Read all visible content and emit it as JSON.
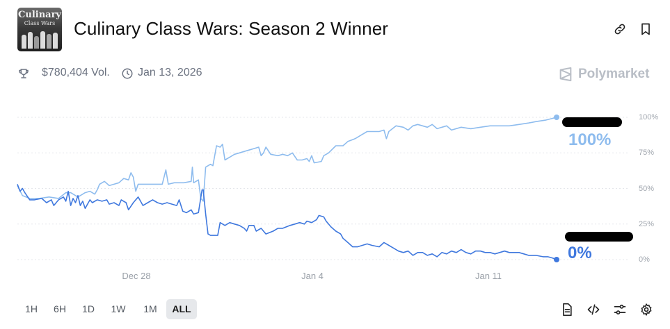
{
  "market": {
    "title": "Culinary Class Wars: Season 2 Winner",
    "volume": "$780,404 Vol.",
    "end_date": "Jan 13, 2026",
    "brand": "Polymarket",
    "thumbnail_text": [
      "Culinary",
      "Class Wars"
    ]
  },
  "timeframes": [
    "1H",
    "6H",
    "1D",
    "1W",
    "1M",
    "ALL"
  ],
  "active_timeframe": "ALL",
  "icons": [
    "trophy-icon",
    "clock-icon",
    "link-icon",
    "bookmark-icon",
    "polymarket-logo-icon",
    "document-icon",
    "code-icon",
    "sliders-icon",
    "gear-icon"
  ],
  "colors": {
    "series_light": "#8ebcee",
    "series_dark": "#3f78de",
    "grid": "#e5e7eb",
    "redaction": "#000000"
  },
  "chart_data": {
    "type": "line",
    "x_unit": "day offset from Dec 28",
    "y_axis": {
      "ticks": [
        "100%",
        "75%",
        "50%",
        "25%",
        "0%"
      ],
      "ylim": [
        0,
        100
      ],
      "position": "right"
    },
    "x_axis": {
      "ticks": [
        {
          "label": "Dec 28",
          "x": 0
        },
        {
          "label": "Jan 4",
          "x": 7
        },
        {
          "label": "Jan 11",
          "x": 14
        }
      ],
      "xlim": [
        -5.01,
        17.36
      ]
    },
    "grid": true,
    "series": [
      {
        "end_label": "100%",
        "color": "#8ebcee",
        "points": [
          [
            -5.01,
            52
          ],
          [
            -4.8,
            45
          ],
          [
            -4.5,
            43
          ],
          [
            -4.1,
            43
          ],
          [
            -3.7,
            44
          ],
          [
            -3.3,
            43
          ],
          [
            -3.0,
            47
          ],
          [
            -2.8,
            47
          ],
          [
            -2.5,
            44
          ],
          [
            -2.2,
            47
          ],
          [
            -2.0,
            48
          ],
          [
            -1.8,
            46
          ],
          [
            -1.7,
            49
          ],
          [
            -1.6,
            53
          ],
          [
            -1.4,
            55
          ],
          [
            -1.2,
            52
          ],
          [
            -1.0,
            53
          ],
          [
            -0.8,
            54
          ],
          [
            -0.6,
            57
          ],
          [
            -0.4,
            56
          ],
          [
            -0.3,
            61
          ],
          [
            -0.2,
            58
          ],
          [
            -0.1,
            48
          ],
          [
            0.0,
            53
          ],
          [
            0.2,
            53
          ],
          [
            0.5,
            53
          ],
          [
            0.8,
            53
          ],
          [
            1.0,
            53
          ],
          [
            1.15,
            63
          ],
          [
            1.25,
            53
          ],
          [
            1.5,
            54
          ],
          [
            1.9,
            54
          ],
          [
            2.2,
            55
          ],
          [
            2.25,
            65
          ],
          [
            2.3,
            54
          ],
          [
            2.5,
            56
          ],
          [
            2.6,
            43
          ],
          [
            2.7,
            41
          ],
          [
            2.8,
            65
          ],
          [
            3.0,
            67
          ],
          [
            3.1,
            66
          ],
          [
            3.25,
            80
          ],
          [
            3.4,
            79
          ],
          [
            3.5,
            81
          ],
          [
            3.6,
            70
          ],
          [
            3.8,
            72
          ],
          [
            4.0,
            74
          ],
          [
            4.2,
            75
          ],
          [
            4.4,
            76
          ],
          [
            4.6,
            77
          ],
          [
            4.8,
            78
          ],
          [
            5.0,
            79
          ],
          [
            5.1,
            73
          ],
          [
            5.2,
            75
          ],
          [
            5.3,
            79
          ],
          [
            5.5,
            74
          ],
          [
            5.8,
            73
          ],
          [
            6.0,
            74
          ],
          [
            6.2,
            73
          ],
          [
            6.4,
            75
          ],
          [
            6.6,
            70
          ],
          [
            6.8,
            70
          ],
          [
            7.0,
            71
          ],
          [
            7.1,
            69
          ],
          [
            7.2,
            73
          ],
          [
            7.3,
            68
          ],
          [
            7.6,
            69
          ],
          [
            7.7,
            73
          ],
          [
            7.9,
            75
          ],
          [
            8.2,
            80
          ],
          [
            8.5,
            80
          ],
          [
            8.7,
            83
          ],
          [
            9.0,
            85
          ],
          [
            9.3,
            88
          ],
          [
            9.5,
            90
          ],
          [
            9.8,
            90
          ],
          [
            10.0,
            90
          ],
          [
            10.2,
            91
          ],
          [
            10.3,
            85
          ],
          [
            10.4,
            90
          ],
          [
            10.7,
            94
          ],
          [
            11.0,
            93
          ],
          [
            11.2,
            91
          ],
          [
            11.4,
            94
          ],
          [
            11.6,
            95
          ],
          [
            12.0,
            93
          ],
          [
            12.2,
            95
          ],
          [
            12.4,
            92
          ],
          [
            12.8,
            94
          ],
          [
            13.0,
            91
          ],
          [
            13.4,
            93
          ],
          [
            13.8,
            92
          ],
          [
            14.2,
            93
          ],
          [
            14.6,
            94
          ],
          [
            15.0,
            94
          ],
          [
            15.4,
            94
          ],
          [
            15.8,
            95
          ],
          [
            16.2,
            96
          ],
          [
            16.5,
            97
          ],
          [
            16.9,
            98
          ],
          [
            17.36,
            100
          ]
        ]
      },
      {
        "end_label": "0%",
        "color": "#3f78de",
        "points": [
          [
            -5.01,
            53
          ],
          [
            -4.9,
            48
          ],
          [
            -4.8,
            50
          ],
          [
            -4.7,
            47
          ],
          [
            -4.5,
            42
          ],
          [
            -4.3,
            42
          ],
          [
            -4.0,
            43
          ],
          [
            -3.8,
            40
          ],
          [
            -3.6,
            42
          ],
          [
            -3.5,
            38
          ],
          [
            -3.3,
            42
          ],
          [
            -3.1,
            44
          ],
          [
            -3.0,
            41
          ],
          [
            -2.9,
            48
          ],
          [
            -2.8,
            38
          ],
          [
            -2.7,
            43
          ],
          [
            -2.6,
            40
          ],
          [
            -2.5,
            45
          ],
          [
            -2.4,
            38
          ],
          [
            -2.3,
            41
          ],
          [
            -2.2,
            36
          ],
          [
            -2.0,
            42
          ],
          [
            -1.9,
            40
          ],
          [
            -1.7,
            42
          ],
          [
            -1.5,
            41
          ],
          [
            -1.3,
            42
          ],
          [
            -1.2,
            39
          ],
          [
            -1.0,
            40
          ],
          [
            -0.8,
            38
          ],
          [
            -0.7,
            42
          ],
          [
            -0.5,
            40
          ],
          [
            -0.4,
            35
          ],
          [
            -0.2,
            40
          ],
          [
            0.0,
            44
          ],
          [
            0.2,
            38
          ],
          [
            0.4,
            40
          ],
          [
            0.6,
            42
          ],
          [
            0.8,
            40
          ],
          [
            1.0,
            39
          ],
          [
            1.2,
            40
          ],
          [
            1.4,
            39
          ],
          [
            1.6,
            38
          ],
          [
            1.7,
            42
          ],
          [
            1.85,
            34
          ],
          [
            2.0,
            33
          ],
          [
            2.2,
            35
          ],
          [
            2.3,
            32
          ],
          [
            2.5,
            33
          ],
          [
            2.65,
            49
          ],
          [
            2.7,
            49
          ],
          [
            2.8,
            32
          ],
          [
            2.9,
            18
          ],
          [
            3.0,
            17
          ],
          [
            3.3,
            17
          ],
          [
            3.4,
            26
          ],
          [
            3.6,
            24
          ],
          [
            3.8,
            26
          ],
          [
            4.0,
            25
          ],
          [
            4.2,
            24
          ],
          [
            4.4,
            22
          ],
          [
            4.5,
            20
          ],
          [
            4.6,
            24
          ],
          [
            4.8,
            24
          ],
          [
            4.9,
            20
          ],
          [
            5.1,
            22
          ],
          [
            5.3,
            18
          ],
          [
            5.6,
            20
          ],
          [
            5.8,
            22
          ],
          [
            6.0,
            22
          ],
          [
            6.3,
            24
          ],
          [
            6.5,
            25
          ],
          [
            6.7,
            26
          ],
          [
            6.9,
            25
          ],
          [
            7.0,
            27
          ],
          [
            7.2,
            26
          ],
          [
            7.4,
            28
          ],
          [
            7.5,
            31
          ],
          [
            7.7,
            30
          ],
          [
            7.8,
            27
          ],
          [
            8.0,
            23
          ],
          [
            8.2,
            20
          ],
          [
            8.4,
            18
          ],
          [
            8.5,
            15
          ],
          [
            8.7,
            12
          ],
          [
            8.9,
            9
          ],
          [
            9.1,
            9
          ],
          [
            9.3,
            10
          ],
          [
            9.5,
            11
          ],
          [
            9.7,
            10
          ],
          [
            10.0,
            9
          ],
          [
            10.2,
            12
          ],
          [
            10.4,
            10
          ],
          [
            10.6,
            8
          ],
          [
            10.8,
            6
          ],
          [
            11.0,
            5
          ],
          [
            11.2,
            6
          ],
          [
            11.4,
            3
          ],
          [
            11.6,
            5
          ],
          [
            11.8,
            5
          ],
          [
            12.0,
            3
          ],
          [
            12.2,
            4
          ],
          [
            12.4,
            2
          ],
          [
            12.6,
            5
          ],
          [
            12.8,
            4
          ],
          [
            13.0,
            6
          ],
          [
            13.2,
            5
          ],
          [
            13.4,
            7
          ],
          [
            13.6,
            5
          ],
          [
            13.8,
            4
          ],
          [
            14.0,
            6
          ],
          [
            14.2,
            6
          ],
          [
            14.4,
            5
          ],
          [
            14.6,
            5
          ],
          [
            14.8,
            4
          ],
          [
            15.0,
            5
          ],
          [
            15.2,
            6
          ],
          [
            15.4,
            5
          ],
          [
            15.6,
            5
          ],
          [
            15.8,
            5
          ],
          [
            16.0,
            4
          ],
          [
            16.2,
            3
          ],
          [
            16.5,
            3
          ],
          [
            16.8,
            2
          ],
          [
            17.0,
            2
          ],
          [
            17.2,
            1
          ],
          [
            17.36,
            0
          ]
        ]
      }
    ]
  }
}
